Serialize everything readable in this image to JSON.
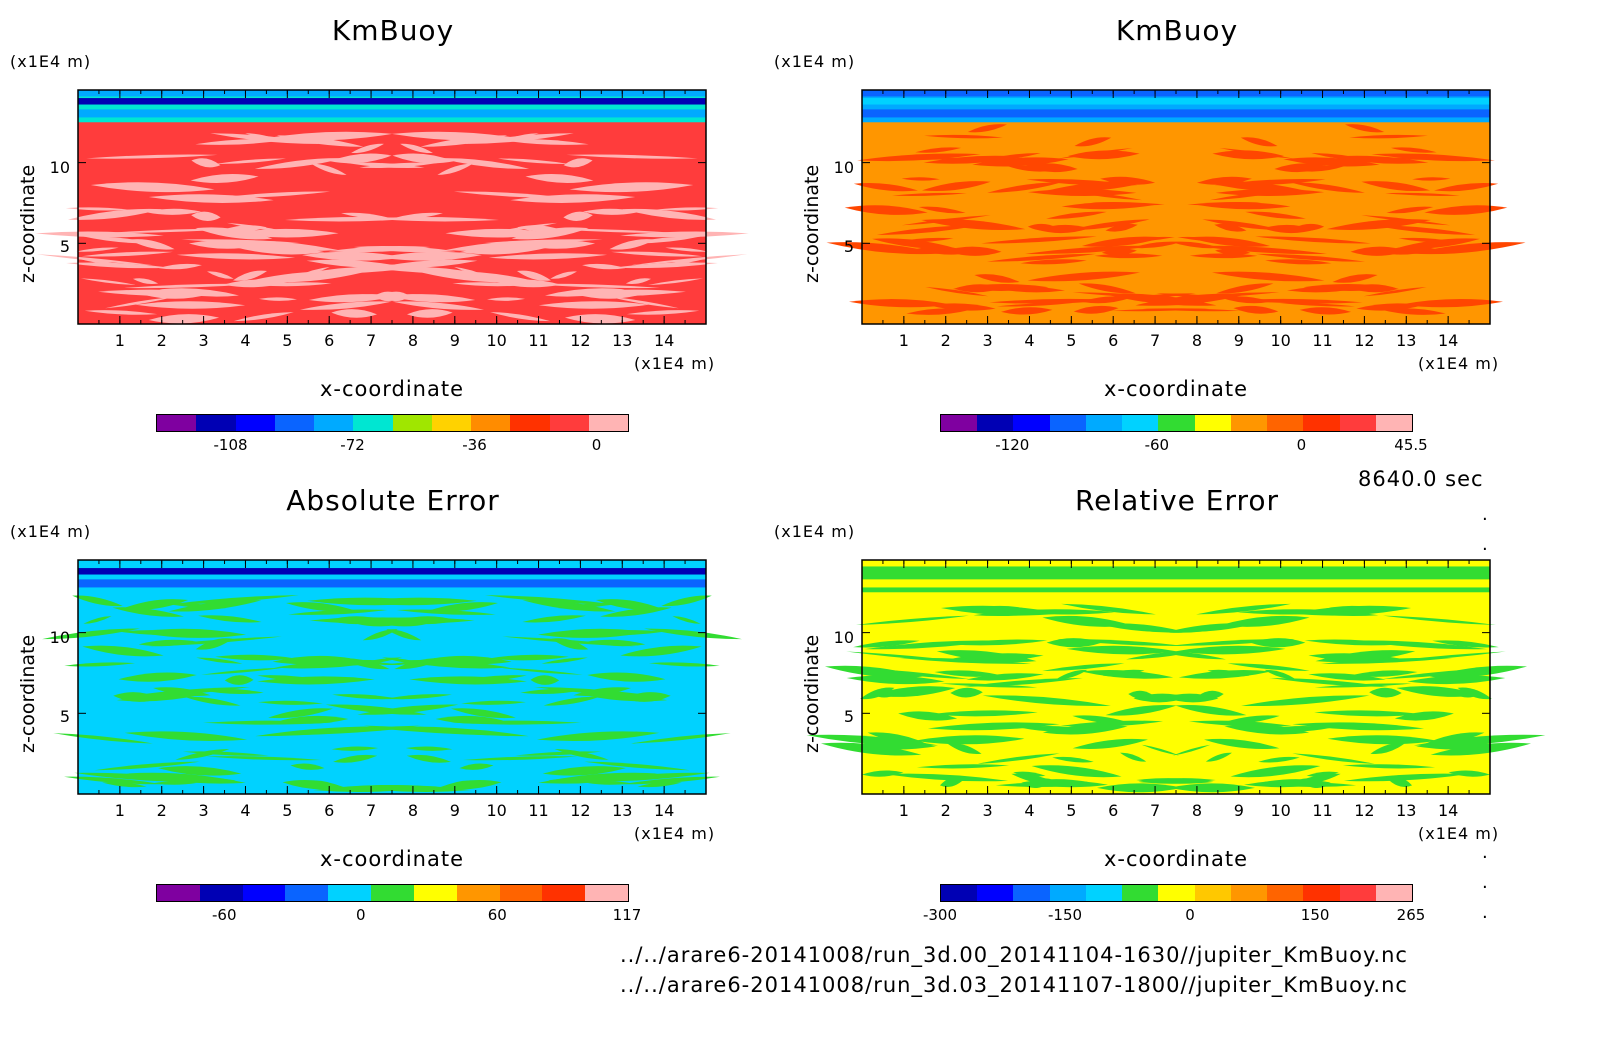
{
  "time_label": "8640.0 sec",
  "files": [
    "../../arare6-20141008/run_3d.00_20141104-1630//jupiter_KmBuoy.nc",
    "../../arare6-20141008/run_3d.03_20141107-1800//jupiter_KmBuoy.nc"
  ],
  "chart_data": [
    {
      "type": "heatmap",
      "title": "KmBuoy",
      "xlabel": "x-coordinate",
      "ylabel": "z-coordinate",
      "x_unit": "(x1E4 m)",
      "y_unit": "(x1E4 m)",
      "xticks": [
        "1",
        "2",
        "3",
        "4",
        "5",
        "6",
        "7",
        "8",
        "9",
        "10",
        "11",
        "12",
        "13",
        "14"
      ],
      "yticks": [
        "5",
        "10"
      ],
      "xlim": [
        0,
        15
      ],
      "ylim": [
        0,
        14.5
      ],
      "colorbar": {
        "colors": [
          "#7f00a0",
          "#0000b4",
          "#0000ff",
          "#0a64ff",
          "#00aaff",
          "#00e6d2",
          "#a0e600",
          "#ffd200",
          "#ff8c00",
          "#ff3200",
          "#ff3c3c",
          "#ffb4b4"
        ],
        "tick_labels": [
          "-108",
          "-72",
          "-36",
          "0"
        ],
        "tick_values": [
          -108,
          -72,
          -36,
          0
        ],
        "range": [
          -130,
          9
        ]
      },
      "base_color": "#ff3c3c",
      "pattern_color": "#ffb4b4",
      "top_band_colors": [
        "#00e6d2",
        "#00aaff",
        "#0000b4",
        "#00aaff"
      ]
    },
    {
      "type": "heatmap",
      "title": "KmBuoy",
      "xlabel": "x-coordinate",
      "ylabel": "z-coordinate",
      "x_unit": "(x1E4 m)",
      "y_unit": "(x1E4 m)",
      "xticks": [
        "1",
        "2",
        "3",
        "4",
        "5",
        "6",
        "7",
        "8",
        "9",
        "10",
        "11",
        "12",
        "13",
        "14"
      ],
      "yticks": [
        "5",
        "10"
      ],
      "xlim": [
        0,
        15
      ],
      "ylim": [
        0,
        14.5
      ],
      "colorbar": {
        "colors": [
          "#7f00a0",
          "#0000b4",
          "#0000ff",
          "#0a64ff",
          "#00aaff",
          "#00d2ff",
          "#32dc32",
          "#ffff00",
          "#ff9600",
          "#ff6400",
          "#ff3200",
          "#ff3c3c",
          "#ffb4b4"
        ],
        "tick_labels": [
          "-120",
          "-60",
          "0",
          "45.5"
        ],
        "tick_values": [
          -120,
          -60,
          0,
          45.5
        ],
        "range": [
          -150,
          45.5
        ]
      },
      "base_color": "#ff9600",
      "pattern_color": "#ff4600",
      "top_band_colors": [
        "#00aaff",
        "#0a64ff",
        "#00d2ff",
        "#0a64ff"
      ]
    },
    {
      "type": "heatmap",
      "title": "Absolute Error",
      "xlabel": "x-coordinate",
      "ylabel": "z-coordinate",
      "x_unit": "(x1E4 m)",
      "y_unit": "(x1E4 m)",
      "xticks": [
        "1",
        "2",
        "3",
        "4",
        "5",
        "6",
        "7",
        "8",
        "9",
        "10",
        "11",
        "12",
        "13",
        "14"
      ],
      "yticks": [
        "5",
        "10"
      ],
      "xlim": [
        0,
        15
      ],
      "ylim": [
        0,
        14.5
      ],
      "colorbar": {
        "colors": [
          "#7f00a0",
          "#0000b4",
          "#0000ff",
          "#0a64ff",
          "#00d2ff",
          "#32dc32",
          "#ffff00",
          "#ff9600",
          "#ff6400",
          "#ff3200",
          "#ffb4b4"
        ],
        "tick_labels": [
          "-60",
          "0",
          "60",
          "117"
        ],
        "tick_values": [
          -60,
          0,
          60,
          117
        ],
        "range": [
          -90,
          117
        ]
      },
      "base_color": "#00d2ff",
      "pattern_color": "#32dc32",
      "top_band_colors": [
        "#00d2ff",
        "#0a64ff",
        "#0000b4",
        "#00d2ff"
      ]
    },
    {
      "type": "heatmap",
      "title": "Relative Error",
      "xlabel": "x-coordinate",
      "ylabel": "z-coordinate",
      "x_unit": "(x1E4 m)",
      "y_unit": "(x1E4 m)",
      "xticks": [
        "1",
        "2",
        "3",
        "4",
        "5",
        "6",
        "7",
        "8",
        "9",
        "10",
        "11",
        "12",
        "13",
        "14"
      ],
      "yticks": [
        "5",
        "10"
      ],
      "xlim": [
        0,
        15
      ],
      "ylim": [
        0,
        14.5
      ],
      "colorbar": {
        "colors": [
          "#0000b4",
          "#0000ff",
          "#0a64ff",
          "#00aaff",
          "#00d2ff",
          "#32dc32",
          "#ffff00",
          "#ffc800",
          "#ff9600",
          "#ff6400",
          "#ff3200",
          "#ff3c3c",
          "#ffb4b4"
        ],
        "tick_labels": [
          "-300",
          "-150",
          "0",
          "150",
          "265"
        ],
        "tick_values": [
          -300,
          -150,
          0,
          150,
          265
        ],
        "range": [
          -300,
          265
        ]
      },
      "base_color": "#ffff00",
      "pattern_color": "#32dc32",
      "top_band_colors": [
        "#32dc32",
        "#ffff00",
        "#32dc32",
        "#ffff00"
      ]
    }
  ]
}
